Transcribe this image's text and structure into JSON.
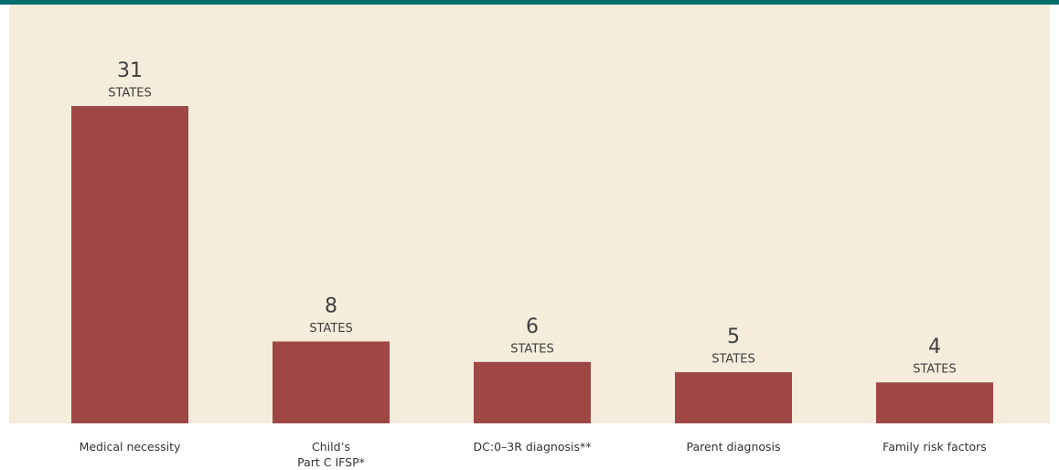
{
  "chart_data": {
    "type": "bar",
    "categories": [
      "Medical necessity",
      "Child’s\nPart C IFSP*",
      "DC:0–3R diagnosis**",
      "Parent diagnosis",
      "Family risk factors"
    ],
    "values": [
      31,
      8,
      6,
      5,
      4
    ],
    "unit_label": "STATES",
    "color": "#9e4744",
    "background": "#f5ecdc",
    "accent": "#006e6a"
  }
}
